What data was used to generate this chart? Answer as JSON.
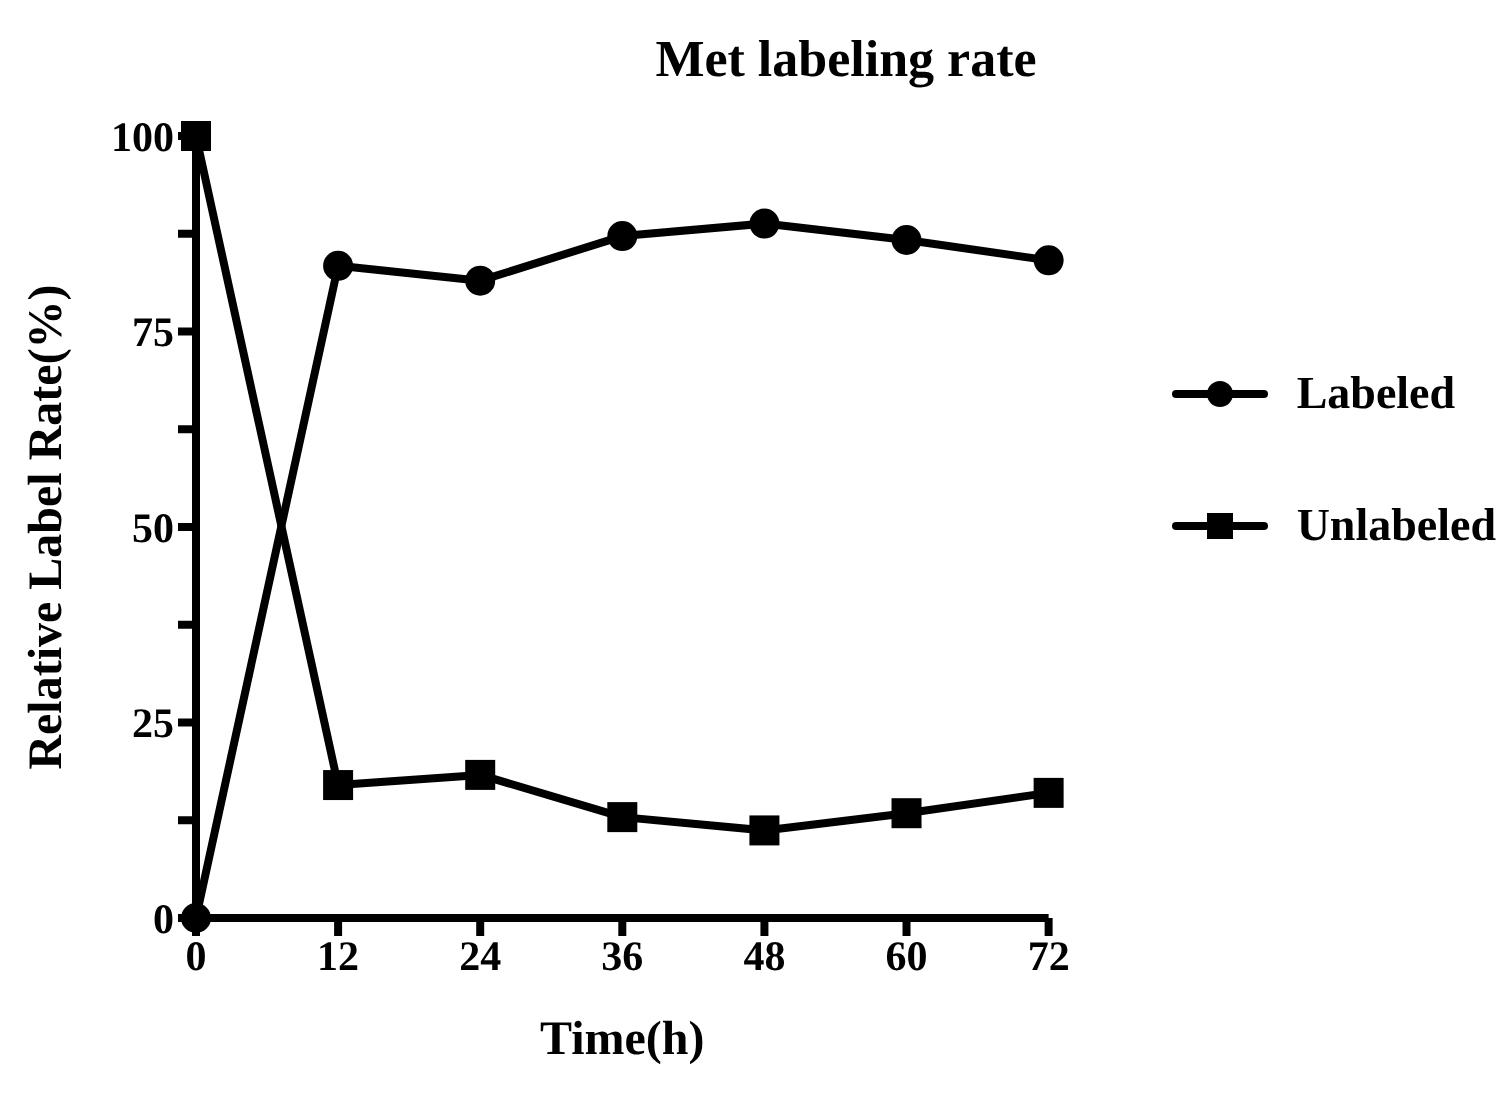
{
  "chart_data": {
    "type": "line",
    "title": "Met labeling rate",
    "xlabel": "Time(h)",
    "ylabel": "Relative Label Rate(%)",
    "x": [
      0,
      12,
      24,
      36,
      48,
      60,
      72
    ],
    "series": [
      {
        "name": "Labeled",
        "color": "#000000",
        "marker": "circle",
        "values": [
          0,
          83.4,
          81.5,
          87.2,
          88.8,
          86.7,
          84.1
        ]
      },
      {
        "name": "Unlabeled",
        "color": "#000000",
        "marker": "square",
        "values": [
          100,
          17.0,
          18.3,
          12.9,
          11.2,
          13.4,
          16.0
        ]
      }
    ],
    "xlim": [
      0,
      72
    ],
    "xticks": [
      0,
      12,
      24,
      36,
      48,
      60,
      72
    ],
    "ylim": [
      0,
      100
    ],
    "yticks": [
      0,
      {
        "value": 12.5,
        "label": null
      },
      25,
      {
        "value": 37.5,
        "label": null
      },
      50,
      {
        "value": 62.5,
        "label": null
      },
      75,
      {
        "value": 87.5,
        "label": null
      },
      100
    ],
    "grid": false,
    "legend": "right",
    "line_style": "solid"
  }
}
